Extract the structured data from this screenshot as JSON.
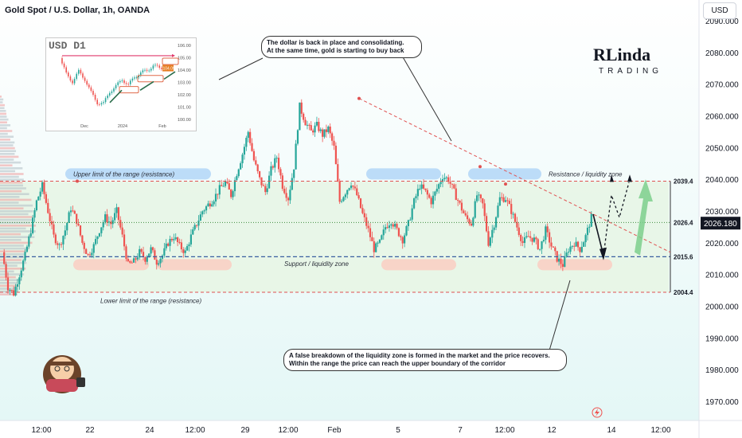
{
  "header": {
    "title": "Gold Spot / U.S. Dollar, 1h, OANDA",
    "currency_button": "USD"
  },
  "chart_data": {
    "type": "candlestick",
    "title": "Gold Spot / U.S. Dollar, 1h, OANDA",
    "symbol": "XAUUSD",
    "timeframe": "1h",
    "source": "OANDA",
    "ylim": [
      1965,
      2095
    ],
    "y_ticks": [
      "2090.000",
      "2080.000",
      "2070.000",
      "2060.000",
      "2050.000",
      "2040.000",
      "2030.000",
      "2020.000",
      "2010.000",
      "2000.000",
      "1990.000",
      "1980.000",
      "1970.000"
    ],
    "x_ticks": [
      "12:00",
      "22",
      "24",
      "12:00",
      "29",
      "12:00",
      "Feb",
      "5",
      "7",
      "12:00",
      "12",
      "14",
      "12:00"
    ],
    "current_price": "2026.180",
    "price_path": [
      2017,
      2006,
      2004,
      2010,
      2016,
      2024,
      2033,
      2038,
      2030,
      2022,
      2019,
      2024,
      2031,
      2027,
      2020,
      2016,
      2019,
      2024,
      2028,
      2026,
      2030,
      2022,
      2013,
      2014,
      2017,
      2015,
      2018,
      2014,
      2016,
      2020,
      2022,
      2019,
      2017,
      2022,
      2026,
      2030,
      2032,
      2034,
      2037,
      2039,
      2035,
      2042,
      2048,
      2055,
      2046,
      2040,
      2036,
      2043,
      2047,
      2038,
      2034,
      2044,
      2063,
      2058,
      2055,
      2057,
      2054,
      2056,
      2050,
      2033,
      2036,
      2039,
      2035,
      2029,
      2024,
      2018,
      2020,
      2025,
      2027,
      2024,
      2021,
      2026,
      2033,
      2038,
      2036,
      2033,
      2037,
      2041,
      2040,
      2036,
      2032,
      2028,
      2026,
      2035,
      2032,
      2020,
      2026,
      2034,
      2034,
      2030,
      2025,
      2020,
      2022,
      2021,
      2018,
      2024,
      2019,
      2015,
      2013,
      2018,
      2020,
      2018,
      2022,
      2028
    ],
    "levels": [
      {
        "label": "2039.4",
        "value": 2039.4
      },
      {
        "label": "2026.4",
        "value": 2026.4
      },
      {
        "label": "2015.6",
        "value": 2015.6
      },
      {
        "label": "2004.4",
        "value": 2004.4
      }
    ],
    "zones": [
      {
        "label": "Upper limit of the range (resistance)"
      },
      {
        "label": "Resistance / liquidity zone"
      },
      {
        "label": "Support / liquidity zone"
      },
      {
        "label": "Lower limit of the range (resistance)"
      }
    ],
    "range_box": {
      "top": 2039.4,
      "bottom": 2004.4
    },
    "colors": {
      "up": "#26a69a",
      "down": "#ef5350",
      "range_fill": "#e6f4e4",
      "resistance_line": "#e05151",
      "support_line": "#3a5fa0",
      "mid_line": "#3e8c3e",
      "forecast_arrow": "#7ccf8c",
      "blue_zone": "#bcdcf8",
      "red_zone": "#f8d4c8",
      "price_label": "#131722"
    }
  },
  "annotations": {
    "top_callout": "The dollar is back in place and consolidating.\nAt the same time, gold is starting to buy back",
    "bottom_callout": "A false breakdown of the liquidity zone is formed in the market and the price recovers.\nWithin the range the price can reach the upper boundary of the corridor"
  },
  "inset": {
    "title": "USD D1",
    "y_ticks": [
      "106.00",
      "105.00",
      "104.00",
      "103.00",
      "102.00",
      "101.00",
      "100.00"
    ],
    "x_ticks": [
      "Dec",
      "2024",
      "Feb"
    ],
    "current": "104.09"
  },
  "logo": {
    "line1": "RLinda",
    "line2": "TRADING"
  }
}
